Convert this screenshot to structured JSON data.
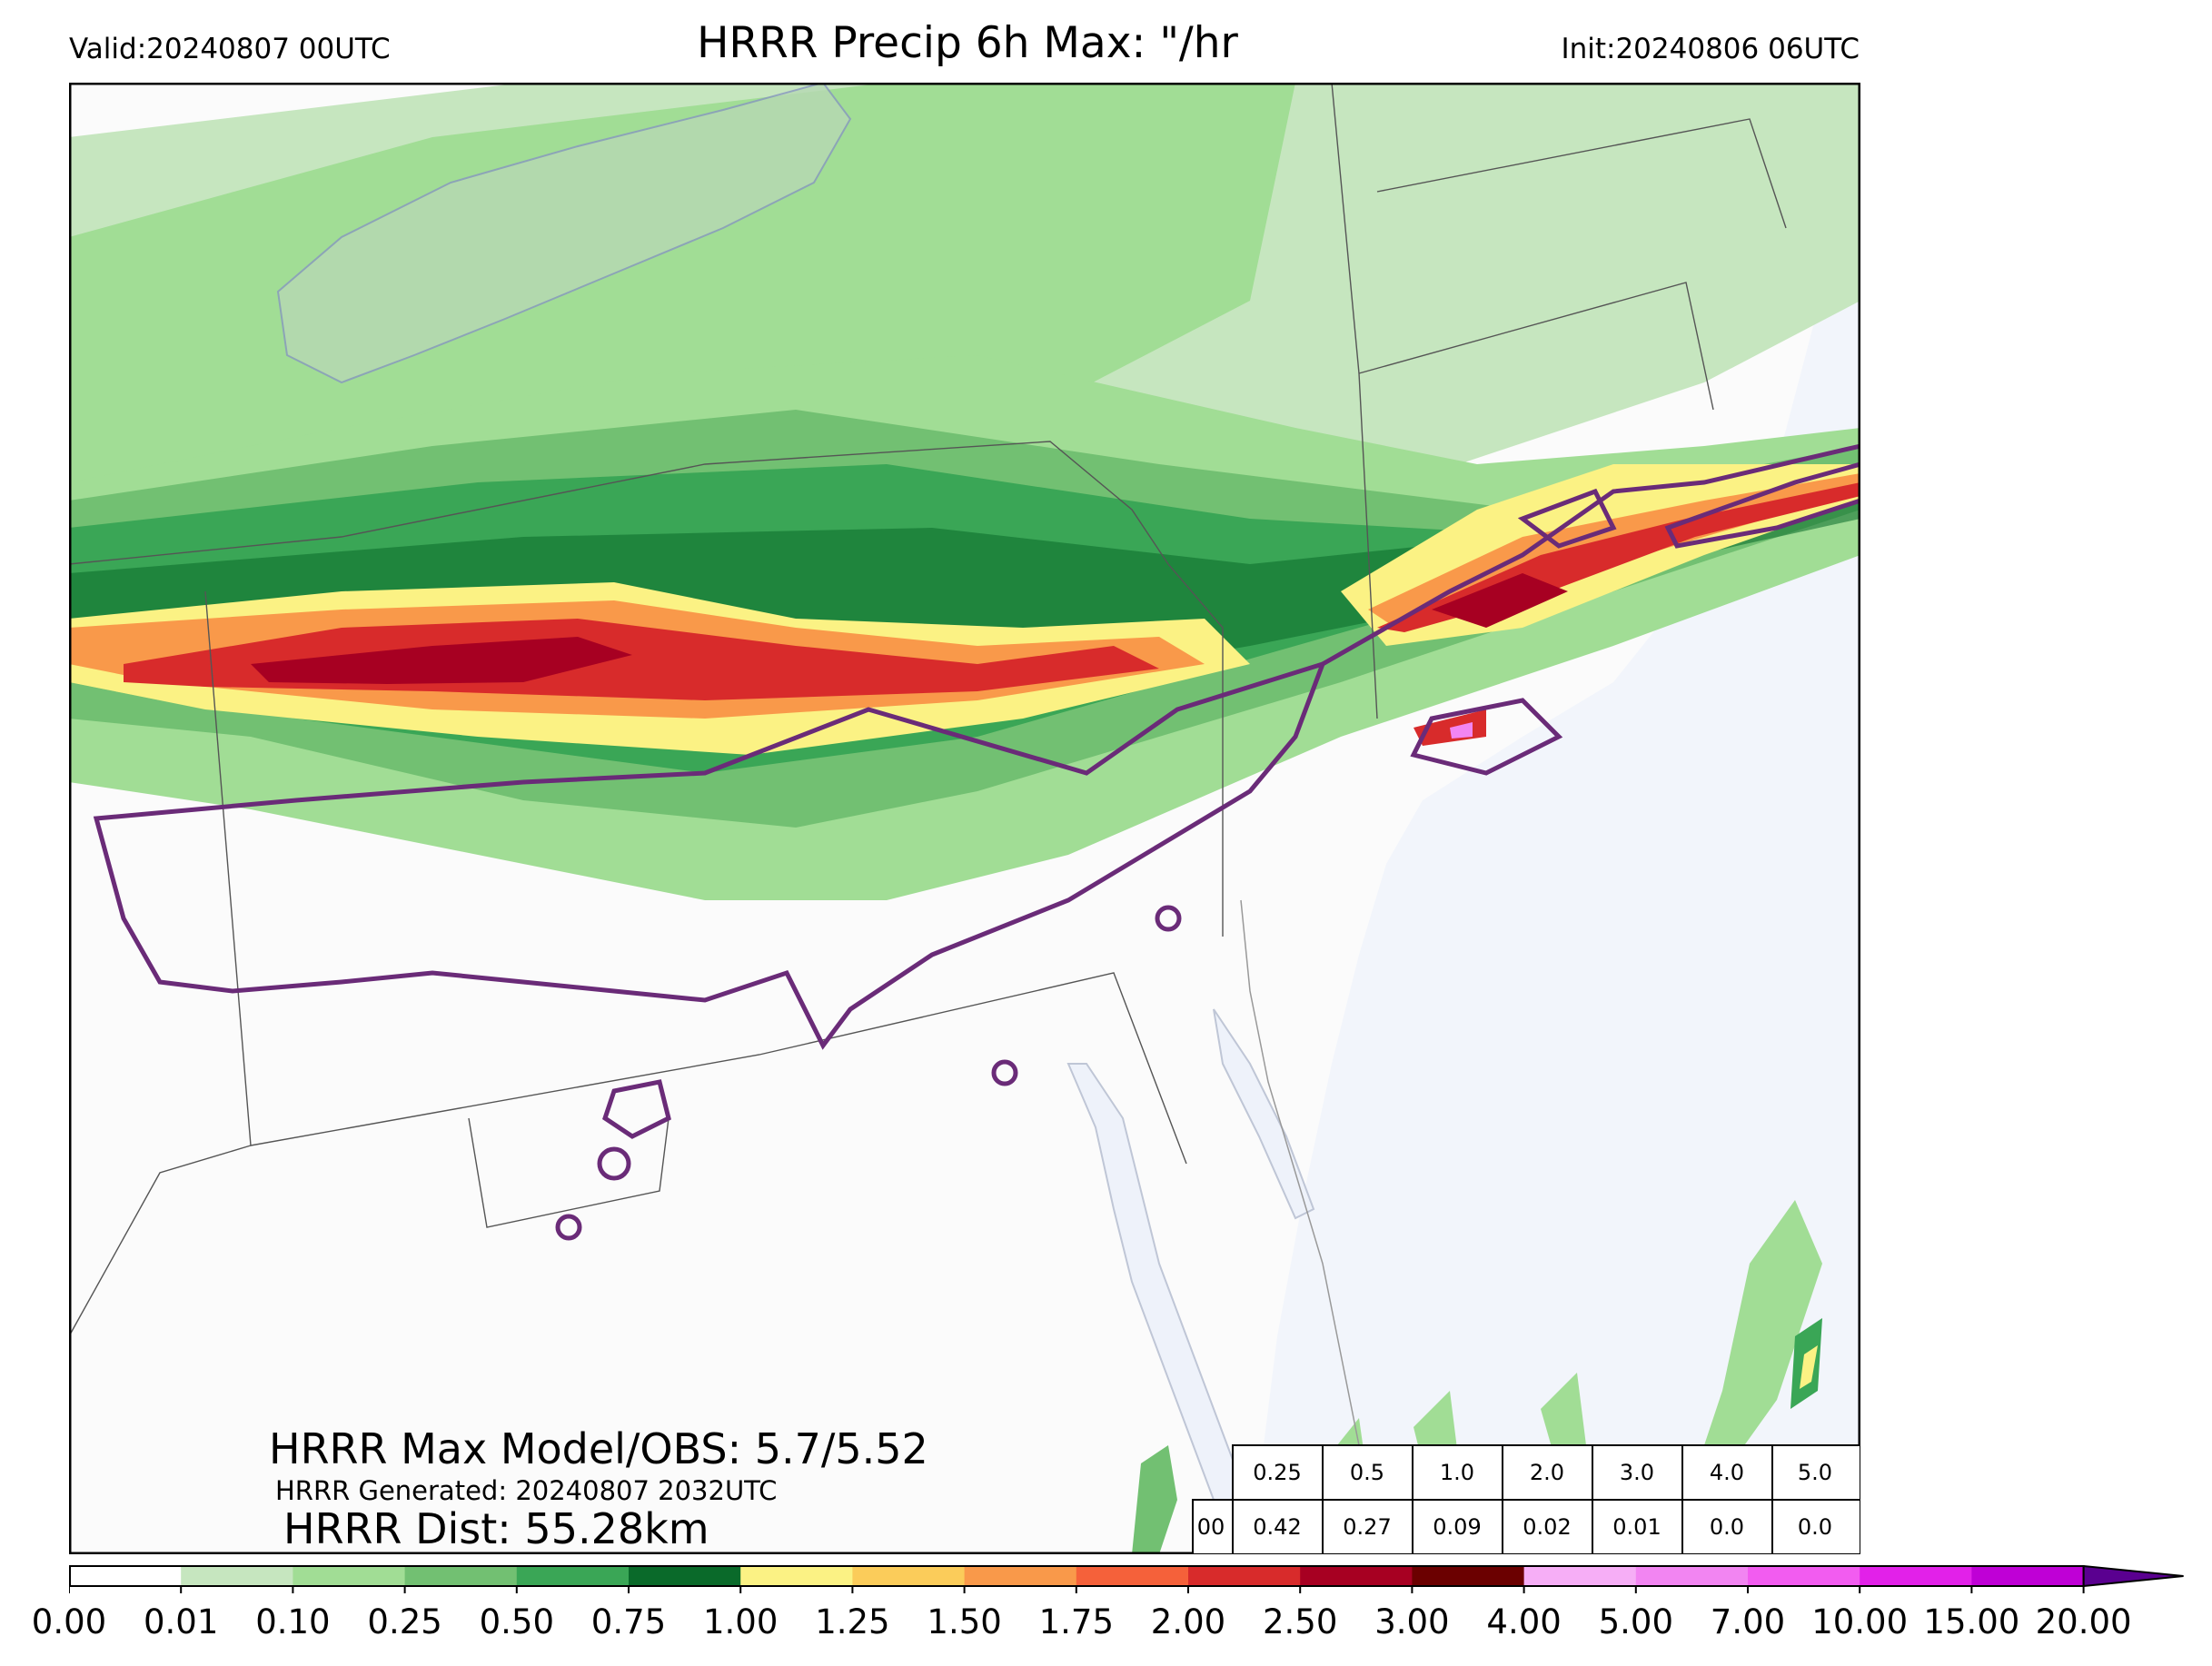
{
  "header": {
    "valid": "Valid:20240807 00UTC",
    "title": "HRRR Precip 6h Max: \"/hr",
    "init": "Init:20240806 06UTC"
  },
  "stats": {
    "max_line": "HRRR Max Model/OBS: 5.7/5.52",
    "generated_line": "HRRR Generated: 20240807 2032UTC",
    "dist_line": "HRRR Dist: 55.28km"
  },
  "threshold_table": {
    "thresholds": [
      "0.25",
      "0.5",
      "1.0",
      "2.0",
      "3.0",
      "4.0",
      "5.0"
    ],
    "row_label": "00",
    "values": [
      "0.42",
      "0.27",
      "0.09",
      "0.02",
      "0.01",
      "0.0",
      "0.0"
    ]
  },
  "colorbar": {
    "ticks": [
      "0.00",
      "0.01",
      "0.10",
      "0.25",
      "0.50",
      "0.75",
      "1.00",
      "1.25",
      "1.50",
      "1.75",
      "2.00",
      "2.50",
      "3.00",
      "4.00",
      "5.00",
      "7.00",
      "10.00",
      "15.00",
      "20.00"
    ],
    "colors": [
      "#ffffff",
      "#c6e6bf",
      "#a1dd95",
      "#72c072",
      "#3aa656",
      "#0a6a2a",
      "#fbf284",
      "#fbcc5a",
      "#f9994a",
      "#f5613a",
      "#d82b2b",
      "#a70022",
      "#6b0000",
      "#f6aef6",
      "#f285f2",
      "#f25cf0",
      "#e221e9",
      "#bf00d6",
      "#8d00c8"
    ],
    "extend_color": "#5a0090"
  },
  "map_colors": {
    "land": "#fbfbfb",
    "water": "#eef2fa",
    "lake": "#cfe4cd",
    "obs_contour": "#6a2b78",
    "boundary": "#555555"
  }
}
